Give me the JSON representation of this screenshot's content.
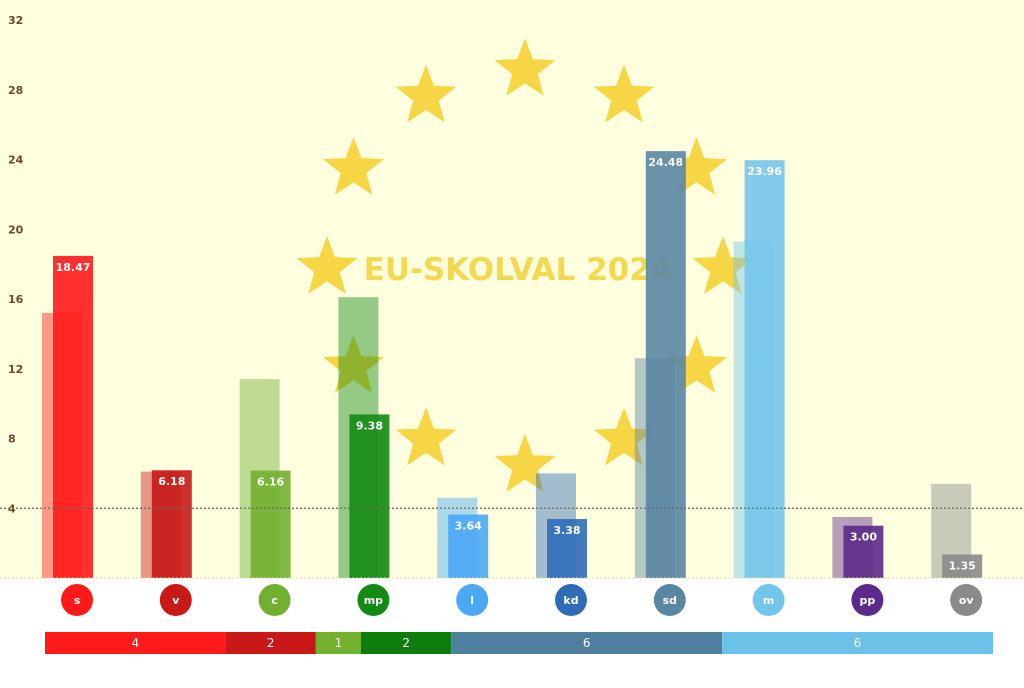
{
  "chart_data": {
    "type": "bar",
    "title": "",
    "watermark": "EU-SKOLVAL 2024",
    "categories": [
      "s",
      "v",
      "c",
      "mp",
      "l",
      "kd",
      "sd",
      "m",
      "pp",
      "ov"
    ],
    "series": [
      {
        "values": [
          15.2,
          6.1,
          11.4,
          16.1,
          4.6,
          6.0,
          12.6,
          19.3,
          3.5,
          5.4
        ]
      },
      {
        "values": [
          18.47,
          6.18,
          6.16,
          9.38,
          3.64,
          3.38,
          24.48,
          23.96,
          3.0,
          1.35
        ]
      }
    ],
    "value_labels": [
      "18.47",
      "6.18",
      "6.16",
      "9.38",
      "3.64",
      "3.38",
      "24.48",
      "23.96",
      "3.00",
      "1.35"
    ],
    "colors": [
      "#ff1a1a",
      "#c81818",
      "#72b030",
      "#138a13",
      "#4aa8f5",
      "#2f6cb8",
      "#5a86a3",
      "#74c5ec",
      "#5c2a8a",
      "#8a8a8a"
    ],
    "yticks": [
      "4",
      "8",
      "12",
      "16",
      "20",
      "24",
      "28",
      "32"
    ],
    "ylim": [
      0,
      33
    ],
    "threshold": 4,
    "grid": false,
    "seat_bar": [
      {
        "label": "4",
        "seats": 4,
        "color": "#ff1a1a"
      },
      {
        "label": "2",
        "seats": 2,
        "color": "#c81818"
      },
      {
        "label": "1",
        "seats": 1,
        "color": "#72b030"
      },
      {
        "label": "2",
        "seats": 2,
        "color": "#0d7d0d"
      },
      {
        "label": "6",
        "seats": 6,
        "color": "#4f7f9e"
      },
      {
        "label": "6",
        "seats": 6,
        "color": "#6cc1e8"
      }
    ],
    "background": "#ffffe0",
    "star_color": "#f6d43c"
  }
}
